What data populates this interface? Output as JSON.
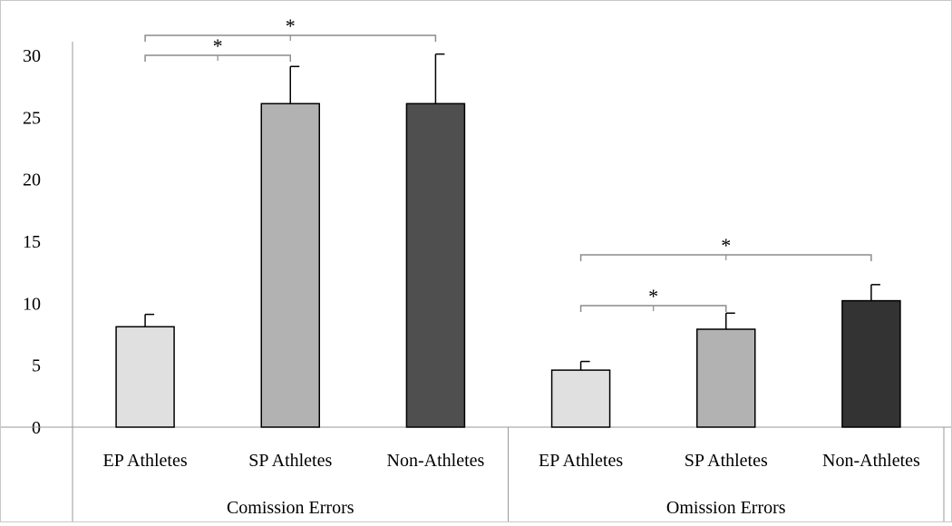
{
  "chart_data": {
    "type": "bar",
    "title": "",
    "xlabel": "",
    "ylabel": "",
    "ylim": [
      0,
      30
    ],
    "yticks": [
      0,
      5,
      10,
      15,
      20,
      25,
      30
    ],
    "grid": false,
    "legend": "none",
    "groups": [
      {
        "name": "Comission Errors",
        "categories": [
          "EP Athletes",
          "SP Athletes",
          "Non-Athletes"
        ],
        "values": [
          8.1,
          26.1,
          26.1
        ],
        "errors": [
          1.0,
          3.0,
          4.0
        ],
        "colors": [
          "#e0e0e0",
          "#b2b2b2",
          "#4f4f4f"
        ]
      },
      {
        "name": "Omission Errors",
        "categories": [
          "EP Athletes",
          "SP Athletes",
          "Non-Athletes"
        ],
        "values": [
          4.6,
          7.9,
          10.2
        ],
        "errors": [
          0.7,
          1.3,
          1.3
        ],
        "colors": [
          "#e0e0e0",
          "#b2b2b2",
          "#333333"
        ]
      }
    ],
    "annotations": [
      {
        "group": 0,
        "from": 0,
        "to": 1,
        "label": "*"
      },
      {
        "group": 0,
        "from": 0,
        "to": 2,
        "label": "*"
      },
      {
        "group": 1,
        "from": 0,
        "to": 1,
        "label": "*"
      },
      {
        "group": 1,
        "from": 0,
        "to": 2,
        "label": "*"
      }
    ]
  }
}
